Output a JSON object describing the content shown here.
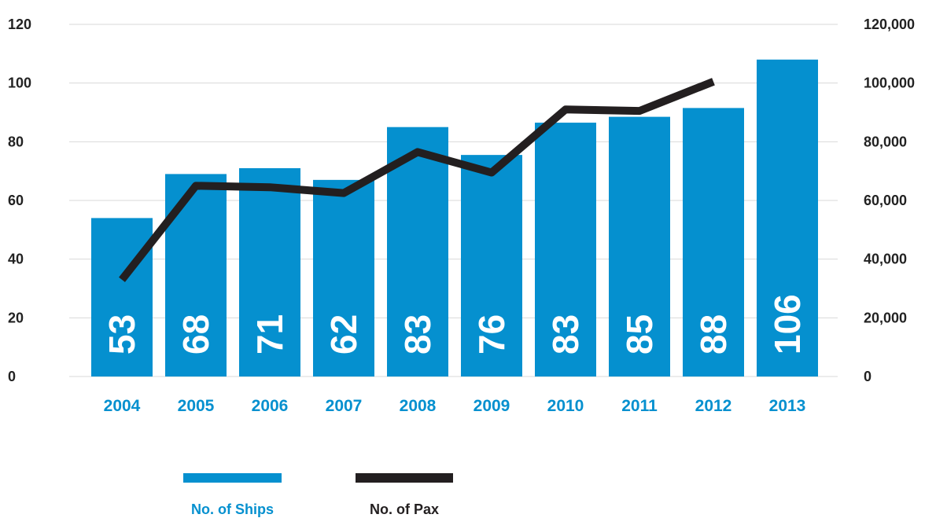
{
  "chart_data": {
    "type": "bar",
    "categories": [
      "2004",
      "2005",
      "2006",
      "2007",
      "2008",
      "2009",
      "2010",
      "2011",
      "2012",
      "2013"
    ],
    "series": [
      {
        "name": "No. of Ships",
        "type": "bar",
        "axis": "left",
        "values": [
          53,
          68,
          71,
          62,
          83,
          76,
          83,
          85,
          88,
          106
        ],
        "bar_heights": [
          54,
          69,
          71,
          67,
          85,
          75.5,
          86.5,
          88.5,
          91.5,
          108
        ],
        "color": "#0590cf"
      },
      {
        "name": "No. of Pax",
        "type": "line",
        "axis": "right",
        "values": [
          33000,
          65000,
          64500,
          62500,
          76500,
          69500,
          91000,
          90500,
          100500,
          null
        ],
        "color": "#231f20"
      }
    ],
    "left_axis": {
      "ylim": [
        0,
        120
      ],
      "ticks": [
        "0",
        "20",
        "40",
        "60",
        "80",
        "100",
        "120"
      ]
    },
    "right_axis": {
      "ylim": [
        0,
        120000
      ],
      "ticks": [
        "0",
        "20,000",
        "40,000",
        "60,000",
        "80,000",
        "100,000",
        "120,000"
      ]
    },
    "legend": {
      "placement": "bottom",
      "items": [
        "No. of Ships",
        "No. of Pax"
      ]
    },
    "grid": true,
    "title": "",
    "xlabel": "",
    "ylabel": ""
  },
  "colors": {
    "accent": "#0590cf",
    "line": "#231f20",
    "grid": "#d9d9d9",
    "tick_text": "#222222"
  }
}
